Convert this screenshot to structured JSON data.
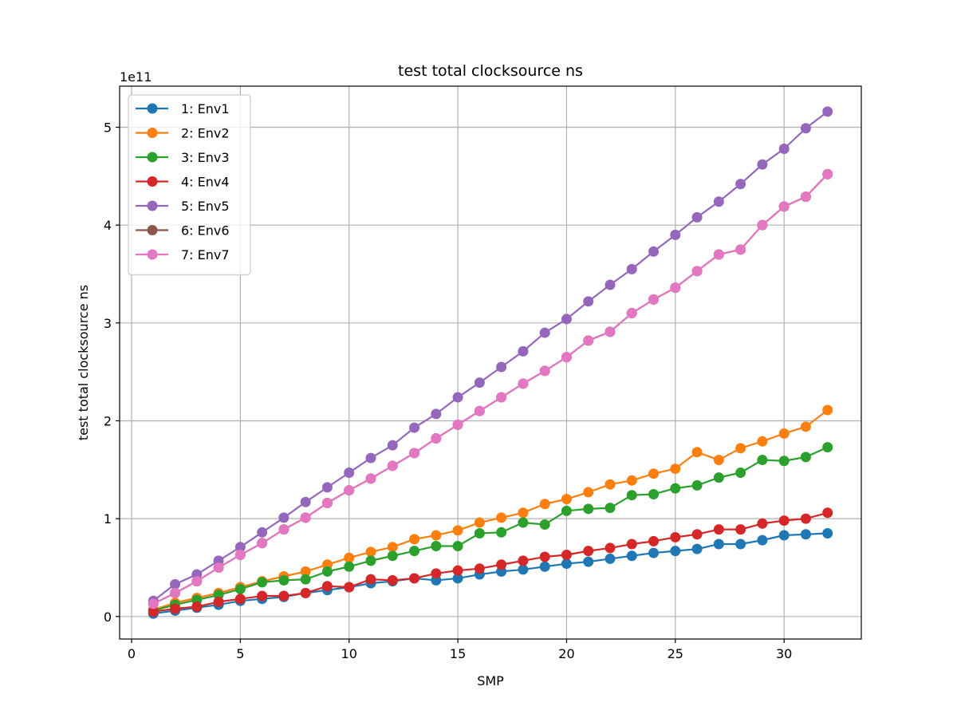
{
  "chart_data": {
    "type": "line",
    "title": "test total clocksource ns",
    "xlabel": "SMP",
    "ylabel": "test total clocksource ns",
    "y_offset_text": "1e11",
    "y_scale_factor": 100000000000.0,
    "xlim": [
      -0.55,
      33.55
    ],
    "ylim": [
      -0.23,
      5.42
    ],
    "x_ticks": [
      0,
      5,
      10,
      15,
      20,
      25,
      30
    ],
    "y_ticks": [
      0,
      1,
      2,
      3,
      4,
      5
    ],
    "grid": true,
    "legend_position": "upper left",
    "x": [
      1,
      2,
      3,
      4,
      5,
      6,
      7,
      8,
      9,
      10,
      11,
      12,
      13,
      14,
      15,
      16,
      17,
      18,
      19,
      20,
      21,
      22,
      23,
      24,
      25,
      26,
      27,
      28,
      29,
      30,
      31,
      32
    ],
    "series": [
      {
        "name": "1: Env1",
        "color": "#1f77b4",
        "values": [
          0.03,
          0.06,
          0.09,
          0.12,
          0.16,
          0.18,
          0.2,
          0.24,
          0.27,
          0.3,
          0.34,
          0.36,
          0.39,
          0.37,
          0.39,
          0.43,
          0.46,
          0.48,
          0.51,
          0.54,
          0.56,
          0.59,
          0.62,
          0.65,
          0.67,
          0.69,
          0.74,
          0.74,
          0.78,
          0.83,
          0.84,
          0.85
        ]
      },
      {
        "name": "2: Env2",
        "color": "#ff7f0e",
        "values": [
          0.07,
          0.14,
          0.19,
          0.24,
          0.3,
          0.36,
          0.41,
          0.46,
          0.53,
          0.6,
          0.66,
          0.71,
          0.79,
          0.83,
          0.88,
          0.96,
          1.01,
          1.06,
          1.15,
          1.2,
          1.27,
          1.35,
          1.39,
          1.46,
          1.51,
          1.68,
          1.6,
          1.72,
          1.79,
          1.87,
          1.94,
          2.11
        ]
      },
      {
        "name": "3: Env3",
        "color": "#2ca02c",
        "values": [
          0.06,
          0.12,
          0.17,
          0.22,
          0.28,
          0.35,
          0.37,
          0.38,
          0.46,
          0.51,
          0.57,
          0.62,
          0.67,
          0.72,
          0.72,
          0.85,
          0.86,
          0.96,
          0.94,
          1.08,
          1.1,
          1.11,
          1.24,
          1.25,
          1.31,
          1.34,
          1.42,
          1.47,
          1.6,
          1.59,
          1.63,
          1.73
        ]
      },
      {
        "name": "4: Env4",
        "color": "#d62728",
        "values": [
          0.05,
          0.08,
          0.1,
          0.15,
          0.18,
          0.21,
          0.21,
          0.24,
          0.31,
          0.3,
          0.38,
          0.37,
          0.39,
          0.44,
          0.47,
          0.49,
          0.53,
          0.57,
          0.61,
          0.63,
          0.67,
          0.7,
          0.74,
          0.77,
          0.81,
          0.84,
          0.89,
          0.89,
          0.95,
          0.98,
          1.0,
          1.06
        ]
      },
      {
        "name": "5: Env5",
        "color": "#9467bd",
        "values": [
          0.16,
          0.33,
          0.43,
          0.57,
          0.71,
          0.86,
          1.01,
          1.17,
          1.32,
          1.47,
          1.62,
          1.75,
          1.93,
          2.07,
          2.24,
          2.39,
          2.55,
          2.71,
          2.9,
          3.04,
          3.22,
          3.39,
          3.55,
          3.73,
          3.9,
          4.08,
          4.24,
          4.42,
          4.62,
          4.78,
          4.99,
          5.16
        ]
      },
      {
        "name": "6: Env6",
        "color": "#8c564b",
        "values": [
          0.13,
          0.24,
          0.36,
          0.5,
          0.63,
          0.75,
          0.89,
          1.01,
          1.16,
          1.29,
          1.41,
          1.54,
          1.67,
          1.82,
          1.96,
          2.1,
          2.24,
          2.38,
          2.51,
          2.65,
          2.82,
          2.91,
          3.1,
          3.24,
          3.36,
          3.53,
          3.7,
          3.75,
          4.0,
          4.19,
          4.29,
          4.52
        ]
      },
      {
        "name": "7: Env7",
        "color": "#e377c2",
        "values": [
          0.13,
          0.24,
          0.36,
          0.5,
          0.63,
          0.75,
          0.89,
          1.01,
          1.16,
          1.29,
          1.41,
          1.54,
          1.67,
          1.82,
          1.96,
          2.1,
          2.24,
          2.38,
          2.51,
          2.65,
          2.82,
          2.91,
          3.1,
          3.24,
          3.36,
          3.53,
          3.7,
          3.75,
          4.0,
          4.19,
          4.29,
          4.52
        ]
      }
    ]
  }
}
